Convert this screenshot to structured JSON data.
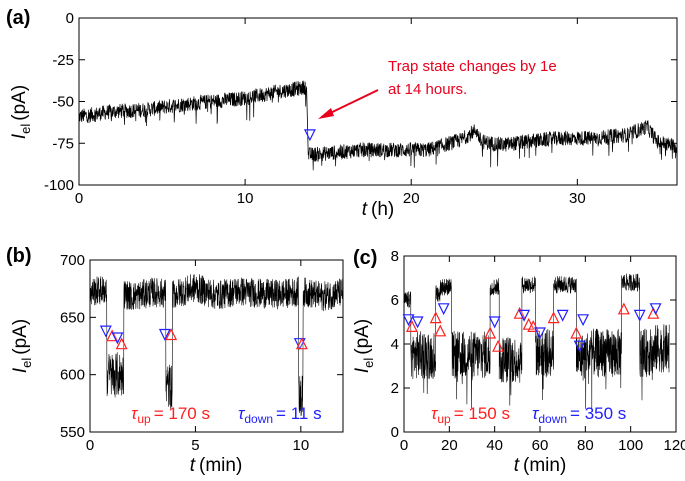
{
  "colors": {
    "trace": "#000000",
    "up": "#ff2020",
    "down": "#2020ff",
    "annotation": "#e8001c"
  },
  "chart_data": [
    {
      "panel": "(a)",
      "type": "line",
      "xlabel_var": "t",
      "xlabel_unit": "(h)",
      "ylabel_var": "I",
      "ylabel_sub": "el",
      "ylabel_unit": "(pA)",
      "xlim": [
        0,
        36
      ],
      "ylim": [
        -100,
        0
      ],
      "xticks": [
        0,
        10,
        20,
        30
      ],
      "yticks": [
        0,
        -25,
        -50,
        -75,
        -100
      ],
      "segments": [
        {
          "t": [
            0,
            2,
            4,
            6,
            8,
            10,
            12,
            13.4,
            13.7
          ],
          "I": [
            -59,
            -56,
            -55,
            -52,
            -50,
            -48,
            -44,
            -42,
            -41
          ]
        },
        {
          "t": [
            13.8,
            15,
            17,
            19,
            21,
            23,
            23.9,
            24.2,
            25.5,
            27,
            29,
            31,
            33,
            34.2,
            34.8,
            36
          ],
          "I": [
            -82,
            -81,
            -79,
            -79,
            -79,
            -73,
            -67,
            -74,
            -76,
            -74,
            -72,
            -72,
            -70,
            -65,
            -74,
            -77
          ]
        }
      ],
      "markers": [
        {
          "t": 13.9,
          "I": -70,
          "kind": "down"
        }
      ],
      "annotation": {
        "lines": [
          "Trap state changes by 1e",
          "at 14 hours."
        ]
      }
    },
    {
      "panel": "(b)",
      "type": "line",
      "xlabel_var": "t",
      "xlabel_unit": "(min)",
      "ylabel_var": "I",
      "ylabel_sub": "el",
      "ylabel_unit": "(pA)",
      "xlim": [
        0,
        12
      ],
      "ylim": [
        550,
        700
      ],
      "xticks": [
        0,
        5,
        10
      ],
      "yticks": [
        550,
        600,
        650,
        700
      ],
      "baseline": [
        [
          0,
          672
        ],
        [
          1,
          675
        ],
        [
          2,
          668
        ],
        [
          3,
          672
        ],
        [
          4,
          670
        ],
        [
          5,
          676
        ],
        [
          6,
          669
        ],
        [
          7,
          673
        ],
        [
          8,
          671
        ],
        [
          9,
          670
        ],
        [
          10,
          673
        ],
        [
          11,
          668
        ],
        [
          12,
          672
        ]
      ],
      "dips": [
        {
          "t": [
            0.8,
            1.6
          ],
          "I": 600
        },
        {
          "t": [
            3.6,
            3.9
          ],
          "I": 590
        },
        {
          "t": [
            9.9,
            10.1
          ],
          "I": 580
        }
      ],
      "markers": [
        {
          "t": 0.75,
          "I": 638,
          "kind": "down"
        },
        {
          "t": 1.05,
          "I": 634,
          "kind": "up"
        },
        {
          "t": 1.3,
          "I": 632,
          "kind": "down"
        },
        {
          "t": 1.5,
          "I": 627,
          "kind": "up"
        },
        {
          "t": 3.55,
          "I": 635,
          "kind": "down"
        },
        {
          "t": 3.85,
          "I": 635,
          "kind": "up"
        },
        {
          "t": 9.95,
          "I": 627,
          "kind": "down"
        },
        {
          "t": 10.05,
          "I": 627,
          "kind": "up"
        }
      ],
      "tau_up": {
        "symbol": "τ",
        "sub": "up",
        "value": "= 170 s"
      },
      "tau_down": {
        "symbol": "τ",
        "sub": "down",
        "value": "= 11 s"
      }
    },
    {
      "panel": "(c)",
      "type": "line",
      "xlabel_var": "t",
      "xlabel_unit": "(min)",
      "ylabel_var": "I",
      "ylabel_sub": "el",
      "ylabel_unit": "(pA)",
      "xlim": [
        0,
        120
      ],
      "ylim": [
        0,
        8
      ],
      "xticks": [
        0,
        20,
        40,
        60,
        80,
        100,
        120
      ],
      "yticks": [
        0,
        2,
        4,
        6,
        8
      ],
      "states": [
        {
          "t": [
            0,
            3
          ],
          "I": 6.0
        },
        {
          "t": [
            3,
            14
          ],
          "I": 3.5
        },
        {
          "t": [
            14,
            16
          ],
          "I": 6.3
        },
        {
          "t": [
            16,
            21
          ],
          "I": 6.6
        },
        {
          "t": [
            21,
            38
          ],
          "I": 3.5
        },
        {
          "t": [
            38,
            42
          ],
          "I": 6.6
        },
        {
          "t": [
            42,
            52
          ],
          "I": 3.3
        },
        {
          "t": [
            52,
            58
          ],
          "I": 6.7
        },
        {
          "t": [
            58,
            66
          ],
          "I": 3.6
        },
        {
          "t": [
            66,
            76
          ],
          "I": 6.7
        },
        {
          "t": [
            76,
            80
          ],
          "I": 3.4
        },
        {
          "t": [
            80,
            96
          ],
          "I": 3.6
        },
        {
          "t": [
            96,
            104
          ],
          "I": 6.8
        },
        {
          "t": [
            104,
            111
          ],
          "I": 3.6
        },
        {
          "t": [
            111,
            117
          ],
          "I": 3.8
        }
      ],
      "markers": [
        {
          "t": 2,
          "I": 5.1,
          "kind": "down"
        },
        {
          "t": 3.5,
          "I": 4.8,
          "kind": "up"
        },
        {
          "t": 6,
          "I": 5.0,
          "kind": "down"
        },
        {
          "t": 14,
          "I": 5.2,
          "kind": "up"
        },
        {
          "t": 16,
          "I": 4.6,
          "kind": "up"
        },
        {
          "t": 17.5,
          "I": 5.6,
          "kind": "down"
        },
        {
          "t": 38,
          "I": 4.5,
          "kind": "up"
        },
        {
          "t": 40,
          "I": 5.0,
          "kind": "down"
        },
        {
          "t": 41.5,
          "I": 3.9,
          "kind": "up"
        },
        {
          "t": 51,
          "I": 5.4,
          "kind": "up"
        },
        {
          "t": 53,
          "I": 5.3,
          "kind": "down"
        },
        {
          "t": 55,
          "I": 4.9,
          "kind": "up"
        },
        {
          "t": 57,
          "I": 4.8,
          "kind": "up"
        },
        {
          "t": 60,
          "I": 4.5,
          "kind": "down"
        },
        {
          "t": 66,
          "I": 5.2,
          "kind": "up"
        },
        {
          "t": 70,
          "I": 5.3,
          "kind": "down"
        },
        {
          "t": 76,
          "I": 4.5,
          "kind": "up"
        },
        {
          "t": 77.5,
          "I": 3.9,
          "kind": "down"
        },
        {
          "t": 79,
          "I": 5.1,
          "kind": "down"
        },
        {
          "t": 97,
          "I": 5.6,
          "kind": "up"
        },
        {
          "t": 104,
          "I": 5.3,
          "kind": "down"
        },
        {
          "t": 110,
          "I": 5.4,
          "kind": "up"
        },
        {
          "t": 111,
          "I": 5.6,
          "kind": "down"
        }
      ],
      "tau_up": {
        "symbol": "τ",
        "sub": "up",
        "value": "= 150 s"
      },
      "tau_down": {
        "symbol": "τ",
        "sub": "down",
        "value": "= 350 s"
      }
    }
  ]
}
